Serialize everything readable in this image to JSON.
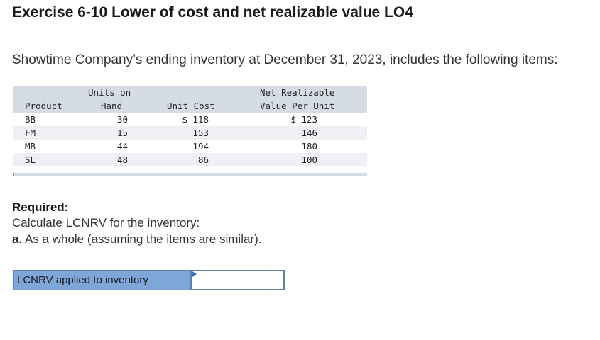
{
  "title": "Exercise 6-10 Lower of cost and net realizable value LO4",
  "intro": "Showtime Company’s ending inventory at December 31, 2023, includes the following items:",
  "table": {
    "headers": {
      "product": "Product",
      "hand_1": "Units on",
      "hand_2": "Hand",
      "cost": "Unit Cost",
      "nrv_1": "Net Realizable",
      "nrv_2": "Value Per Unit"
    },
    "rows": [
      {
        "product": "BB",
        "hand": "30",
        "cost": "$ 118",
        "nrv": "$ 123"
      },
      {
        "product": "FM",
        "hand": "15",
        "cost": "153",
        "nrv": "146"
      },
      {
        "product": "MB",
        "hand": "44",
        "cost": "194",
        "nrv": "180"
      },
      {
        "product": "SL",
        "hand": "48",
        "cost": "86",
        "nrv": "100"
      }
    ]
  },
  "required": {
    "heading": "Required:",
    "instruction": "Calculate LCNRV for the inventory:",
    "part_letter": "a.",
    "part_text": " As a whole (assuming the items are similar)."
  },
  "answer": {
    "label": "LCNRV applied to inventory",
    "value": ""
  },
  "colors": {
    "header_bg": "#d6dce4",
    "label_bg": "#7fa6d9",
    "border": "#5b7fae"
  }
}
